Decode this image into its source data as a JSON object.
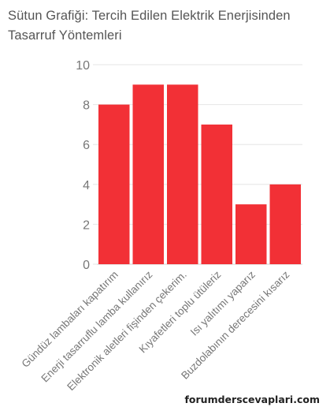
{
  "chart_data": {
    "type": "bar",
    "title": "Sütun Grafiği: Tercih Edilen Elektrik Enerjisinden Tasarruf Yöntemleri",
    "categories": [
      "Gündüz lambaları kapatırım",
      "Enerji tasarruflu lamba kullanırız",
      "Elektronik aletleri fişinden çekerim.",
      "Kıyafetleri toplu ütüleriz",
      "Isı yalıtımı yaparız",
      "Buzdolabının derecesini kısarız"
    ],
    "values": [
      8,
      9,
      9,
      7,
      3,
      4
    ],
    "ylim": [
      0,
      10
    ],
    "yticks": [
      0,
      2,
      4,
      6,
      8,
      10
    ],
    "xlabel": "",
    "ylabel": "",
    "grid": true,
    "bar_color": "#f23036"
  },
  "watermark": "forumderscevaplari.com"
}
